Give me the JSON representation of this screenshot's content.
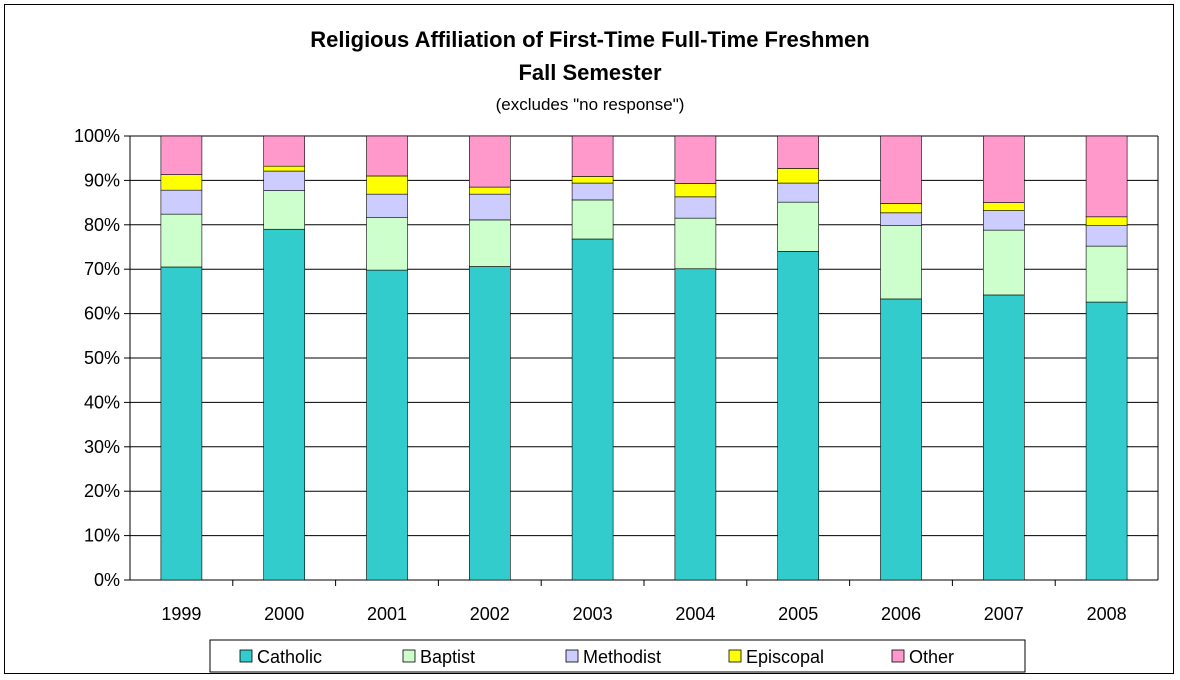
{
  "chart_data": {
    "type": "bar",
    "stacked": true,
    "title": "Religious Affiliation of First-Time Full-Time Freshmen",
    "subtitle": "Fall Semester",
    "note": "(excludes \"no response\")",
    "categories": [
      "1999",
      "2000",
      "2001",
      "2002",
      "2003",
      "2004",
      "2005",
      "2006",
      "2007",
      "2008"
    ],
    "ylim": [
      0,
      100
    ],
    "y_ticks": [
      "0%",
      "10%",
      "20%",
      "30%",
      "40%",
      "50%",
      "60%",
      "70%",
      "80%",
      "90%",
      "100%"
    ],
    "grid": true,
    "legend_position": "bottom",
    "series": [
      {
        "name": "Catholic",
        "color": "#33cccc",
        "values": [
          70.5,
          79.0,
          69.8,
          70.6,
          76.8,
          70.1,
          74.0,
          63.3,
          64.2,
          62.6
        ]
      },
      {
        "name": "Baptist",
        "color": "#ccffcc",
        "values": [
          11.9,
          8.7,
          11.8,
          10.5,
          8.8,
          11.4,
          11.1,
          16.5,
          14.6,
          12.6
        ]
      },
      {
        "name": "Methodist",
        "color": "#ccccff",
        "values": [
          5.4,
          4.4,
          5.3,
          5.8,
          3.8,
          4.8,
          4.3,
          2.9,
          4.4,
          4.6
        ]
      },
      {
        "name": "Episcopal",
        "color": "#ffff00",
        "values": [
          3.5,
          1.1,
          4.1,
          1.6,
          1.5,
          3.0,
          3.3,
          2.1,
          1.8,
          2.0
        ]
      },
      {
        "name": "Other",
        "color": "#ff99cc",
        "values": [
          8.7,
          6.8,
          9.0,
          11.5,
          9.1,
          10.7,
          7.3,
          15.2,
          15.0,
          18.2
        ]
      }
    ]
  }
}
